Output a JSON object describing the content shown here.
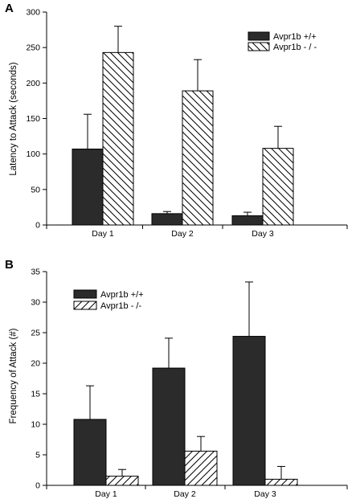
{
  "chart_data": [
    {
      "panel": "A",
      "type": "bar",
      "categories": [
        "Day 1",
        "Day 2",
        "Day 3"
      ],
      "series": [
        {
          "name": "Avpr1b +/+",
          "values": [
            107,
            16,
            13
          ],
          "errors": [
            49,
            3,
            5
          ],
          "fill": "#2b2b2b",
          "pattern": "solid"
        },
        {
          "name": "Avpr1b - / -",
          "values": [
            243,
            189,
            108
          ],
          "errors": [
            37,
            44,
            31
          ],
          "fill": "#ffffff",
          "pattern": "backslash"
        }
      ],
      "ylabel": "Latency to Attack (seconds)",
      "ylim": [
        0,
        300
      ],
      "yticks": [
        0,
        50,
        100,
        150,
        200,
        250,
        300
      ],
      "grid": false,
      "legend_position": "top-right"
    },
    {
      "panel": "B",
      "type": "bar",
      "categories": [
        "Day 1",
        "Day 2",
        "Day 3"
      ],
      "series": [
        {
          "name": "Avpr1b +/+",
          "values": [
            10.8,
            19.2,
            24.4
          ],
          "errors": [
            5.5,
            4.9,
            8.9
          ],
          "fill": "#2b2b2b",
          "pattern": "solid"
        },
        {
          "name": "Avpr1b - /-",
          "values": [
            1.5,
            5.6,
            1.0
          ],
          "errors": [
            1.1,
            2.4,
            2.1
          ],
          "fill": "#ffffff",
          "pattern": "slash"
        }
      ],
      "ylabel": "Frequency of Attack (#)",
      "ylim": [
        0,
        35
      ],
      "yticks": [
        0,
        5,
        10,
        15,
        20,
        25,
        30,
        35
      ],
      "grid": false,
      "legend_position": "top-left"
    }
  ]
}
